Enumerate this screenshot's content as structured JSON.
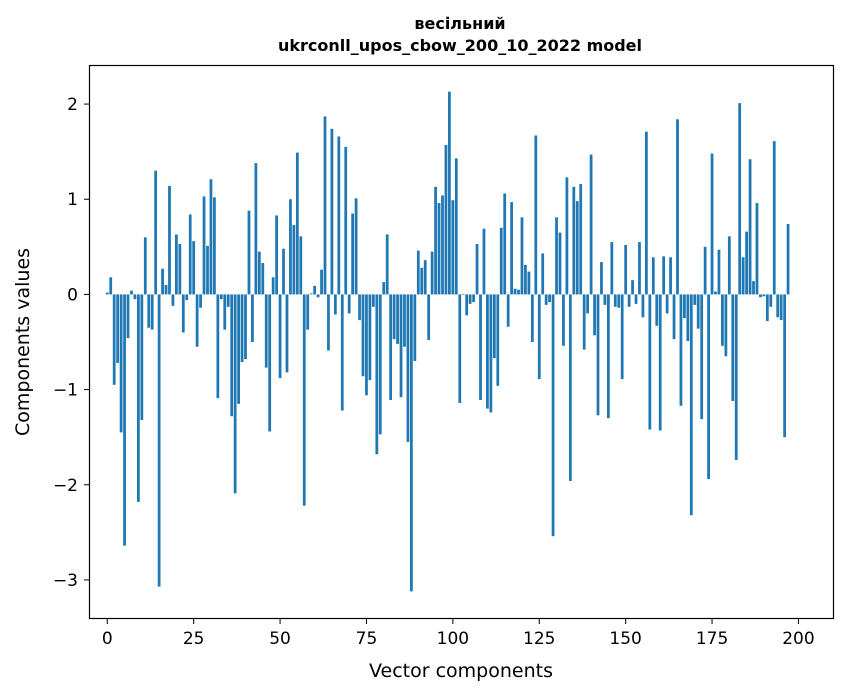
{
  "chart_data": {
    "type": "bar",
    "title_line1": "весільний",
    "title_line2": "ukrconll_upos_cbow_200_10_2022 model",
    "xlabel": "Vector components",
    "ylabel": "Components values",
    "xlim": [
      -5,
      210
    ],
    "ylim": [
      -3.4,
      2.4
    ],
    "xticks": [
      0,
      25,
      50,
      75,
      100,
      125,
      150,
      175,
      200
    ],
    "xtick_labels": [
      "0",
      "25",
      "50",
      "75",
      "100",
      "125",
      "150",
      "175",
      "200"
    ],
    "yticks": [
      -3,
      -2,
      -1,
      0,
      1,
      2
    ],
    "ytick_labels": [
      "−3",
      "−2",
      "−1",
      "0",
      "1",
      "2"
    ],
    "bar_color": "#1f77b4",
    "grid": false,
    "values": [
      0.02,
      0.18,
      -0.95,
      -0.72,
      -1.45,
      -2.64,
      -0.46,
      0.04,
      -0.05,
      -2.18,
      -1.32,
      0.6,
      -0.35,
      -0.37,
      1.3,
      -3.07,
      0.27,
      0.1,
      1.14,
      -0.12,
      0.63,
      0.53,
      -0.4,
      -0.06,
      0.84,
      0.56,
      -0.55,
      -0.14,
      1.03,
      0.51,
      1.21,
      1.02,
      -1.09,
      -0.05,
      -0.37,
      -0.13,
      -1.28,
      -2.09,
      -1.15,
      -0.71,
      -0.68,
      0.88,
      -0.5,
      1.38,
      0.45,
      0.33,
      -0.77,
      -1.44,
      0.18,
      0.83,
      -0.88,
      0.48,
      -0.82,
      1.0,
      0.73,
      1.49,
      0.61,
      -2.22,
      -0.37,
      0.01,
      0.09,
      -0.03,
      0.26,
      1.87,
      -0.59,
      1.74,
      -0.21,
      1.66,
      -1.22,
      1.55,
      -0.2,
      0.85,
      1.01,
      -0.27,
      -0.86,
      -1.06,
      -0.9,
      -0.13,
      -1.68,
      -1.47,
      0.13,
      0.63,
      -1.11,
      -0.47,
      -0.52,
      -1.08,
      -0.55,
      -1.55,
      -3.12,
      -0.7,
      0.46,
      0.28,
      0.36,
      -0.48,
      0.45,
      1.13,
      0.96,
      1.04,
      1.57,
      2.13,
      0.99,
      1.43,
      -1.14,
      0.0,
      -0.22,
      -0.1,
      -0.08,
      0.53,
      -1.11,
      0.69,
      -1.2,
      -1.24,
      -0.67,
      -0.96,
      0.7,
      1.06,
      -0.34,
      0.97,
      0.06,
      0.05,
      0.81,
      0.31,
      0.24,
      -0.5,
      1.67,
      -0.89,
      0.43,
      -0.11,
      -0.08,
      -2.54,
      0.81,
      0.65,
      -0.54,
      1.23,
      -1.96,
      1.13,
      0.98,
      1.16,
      -0.58,
      -0.2,
      1.47,
      -0.43,
      -1.27,
      0.34,
      -0.11,
      -1.3,
      0.55,
      -0.13,
      -0.14,
      -0.89,
      0.52,
      -0.13,
      0.15,
      -0.1,
      0.55,
      -0.24,
      1.71,
      -1.42,
      0.39,
      -0.33,
      -1.43,
      0.4,
      -0.2,
      0.39,
      -0.47,
      1.84,
      -1.17,
      -0.25,
      -0.49,
      -2.32,
      -0.11,
      -0.36,
      -1.31,
      0.5,
      -1.94,
      1.48,
      0.03,
      0.47,
      -0.54,
      -0.65,
      0.61,
      -1.12,
      -1.74,
      2.01,
      0.39,
      0.66,
      1.42,
      0.14,
      0.96,
      -0.03,
      -0.02,
      -0.28,
      -0.13,
      1.61,
      -0.24,
      -0.27,
      -1.5,
      0.74
    ]
  }
}
